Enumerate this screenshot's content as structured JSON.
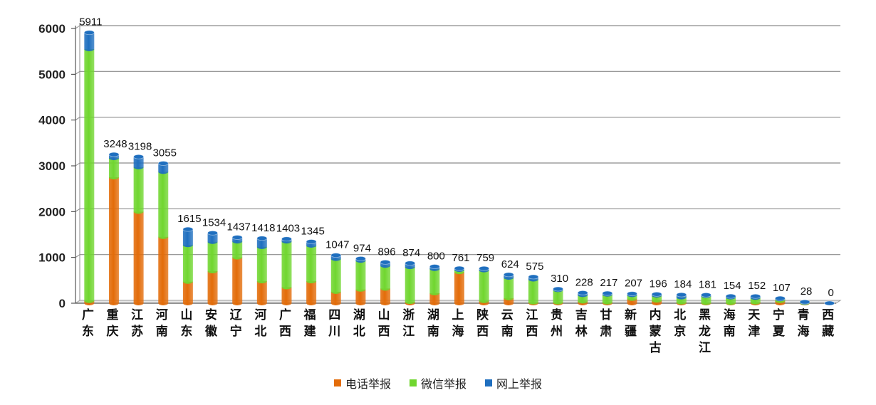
{
  "chart_data": {
    "type": "bar",
    "stacked": true,
    "categories": [
      "广东",
      "重庆",
      "江苏",
      "河南",
      "山东",
      "安徽",
      "辽宁",
      "河北",
      "广西",
      "福建",
      "四川",
      "湖北",
      "山西",
      "浙江",
      "湖南",
      "上海",
      "陕西",
      "云南",
      "江西",
      "贵州",
      "吉林",
      "甘肃",
      "新疆",
      "内蒙古",
      "北京",
      "黑龙江",
      "海南",
      "天津",
      "宁夏",
      "青海",
      "西藏"
    ],
    "totals": [
      5911,
      3248,
      3198,
      3055,
      1615,
      1534,
      1437,
      1418,
      1403,
      1345,
      1047,
      974,
      896,
      874,
      800,
      761,
      759,
      624,
      575,
      310,
      228,
      217,
      207,
      196,
      184,
      181,
      154,
      152,
      107,
      28,
      0
    ],
    "series": [
      {
        "name": "电话举报",
        "color": "#e36c09",
        "values": [
          50,
          2750,
          2000,
          1450,
          470,
          700,
          1000,
          480,
          350,
          480,
          250,
          300,
          320,
          30,
          220,
          680,
          50,
          110,
          20,
          20,
          40,
          20,
          100,
          60,
          20,
          10,
          10,
          20,
          50,
          5,
          0
        ]
      },
      {
        "name": "微信举报",
        "color": "#70d62f",
        "values": [
          5500,
          420,
          970,
          1420,
          800,
          640,
          350,
          750,
          1000,
          780,
          720,
          630,
          500,
          760,
          530,
          50,
          670,
          450,
          500,
          270,
          140,
          170,
          80,
          110,
          110,
          150,
          120,
          100,
          40,
          10,
          0
        ]
      },
      {
        "name": "网上举报",
        "color": "#1f6fbf",
        "values": [
          361,
          78,
          228,
          185,
          345,
          194,
          87,
          188,
          53,
          85,
          77,
          44,
          76,
          84,
          50,
          31,
          39,
          64,
          55,
          20,
          48,
          27,
          27,
          26,
          54,
          21,
          24,
          32,
          17,
          13,
          0
        ]
      }
    ],
    "ylim": [
      0,
      6000
    ],
    "yticks": [
      0,
      1000,
      2000,
      3000,
      4000,
      5000,
      6000
    ],
    "grid": true,
    "legend_position": "bottom"
  }
}
